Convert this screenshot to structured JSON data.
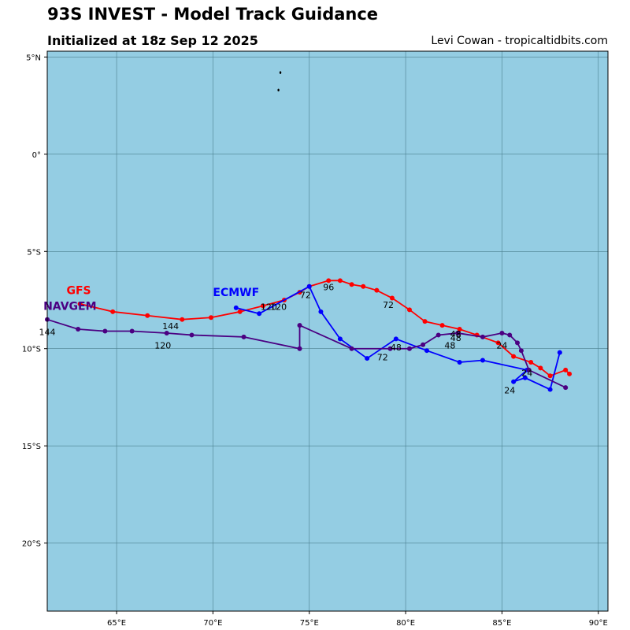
{
  "header": {
    "title": "93S INVEST - Model Track Guidance",
    "subtitle": "Initialized at 18z Sep 12 2025",
    "credit": "Levi Cowan - tropicaltidbits.com"
  },
  "colors": {
    "ocean": "#94cde3",
    "grid": "#4a7f8f",
    "gfs": "#ff0000",
    "ecmwf": "#0000ff",
    "navgem": "#4b0082"
  },
  "chart_data": {
    "type": "map",
    "xlim": [
      61.4,
      90.5
    ],
    "ylim": [
      -23.5,
      5.3
    ],
    "x_ticks": [
      {
        "value": 65,
        "label": "65°E"
      },
      {
        "value": 70,
        "label": "70°E"
      },
      {
        "value": 75,
        "label": "75°E"
      },
      {
        "value": 80,
        "label": "80°E"
      },
      {
        "value": 85,
        "label": "85°E"
      },
      {
        "value": 90,
        "label": "90°E"
      }
    ],
    "y_ticks": [
      {
        "value": 5,
        "label": "5°N"
      },
      {
        "value": 0,
        "label": "0°"
      },
      {
        "value": -5,
        "label": "5°S"
      },
      {
        "value": -10,
        "label": "10°S"
      },
      {
        "value": -15,
        "label": "15°S"
      },
      {
        "value": -20,
        "label": "20°S"
      }
    ],
    "grid": true,
    "islands": [
      {
        "lon": 73.5,
        "lat": 4.2
      },
      {
        "lon": 73.4,
        "lat": 3.3
      }
    ],
    "tracks": [
      {
        "name": "GFS",
        "color": "#ff0000",
        "label_pos": [
          62.4,
          -7.2
        ],
        "points": [
          [
            88.5,
            -11.3
          ],
          [
            88.3,
            -11.1
          ],
          [
            87.5,
            -11.4
          ],
          [
            87.0,
            -11.0
          ],
          [
            86.5,
            -10.7
          ],
          [
            85.6,
            -10.4
          ],
          [
            84.8,
            -9.7
          ],
          [
            83.7,
            -9.3
          ],
          [
            82.8,
            -9.0
          ],
          [
            81.9,
            -8.8
          ],
          [
            81.0,
            -8.6
          ],
          [
            80.2,
            -8.0
          ],
          [
            79.3,
            -7.4
          ],
          [
            78.5,
            -7.0
          ],
          [
            77.8,
            -6.8
          ],
          [
            77.2,
            -6.7
          ],
          [
            76.6,
            -6.5
          ],
          [
            76.0,
            -6.5
          ],
          [
            75.0,
            -6.8
          ],
          [
            74.5,
            -7.1
          ],
          [
            73.7,
            -7.5
          ],
          [
            72.6,
            -7.8
          ],
          [
            71.4,
            -8.1
          ],
          [
            69.9,
            -8.4
          ],
          [
            68.4,
            -8.5
          ],
          [
            66.6,
            -8.3
          ],
          [
            64.8,
            -8.1
          ],
          [
            63.1,
            -7.7
          ]
        ],
        "labels": [
          {
            "text": "24",
            "lon": 85.0,
            "lat": -10.0
          },
          {
            "text": "48",
            "lon": 82.6,
            "lat": -9.6
          },
          {
            "text": "72",
            "lon": 79.1,
            "lat": -7.9
          },
          {
            "text": "96",
            "lon": 76.0,
            "lat": -7.0
          },
          {
            "text": "120",
            "lon": 73.4,
            "lat": -8.0
          },
          {
            "text": "144",
            "lon": 67.8,
            "lat": -9.0
          }
        ]
      },
      {
        "name": "ECMWF",
        "color": "#0000ff",
        "label_pos": [
          70.0,
          -7.3
        ],
        "points": [
          [
            88.0,
            -10.2
          ],
          [
            87.5,
            -12.1
          ],
          [
            86.2,
            -11.5
          ],
          [
            85.6,
            -11.7
          ],
          [
            86.3,
            -11.1
          ],
          [
            84.0,
            -10.6
          ],
          [
            82.8,
            -10.7
          ],
          [
            81.1,
            -10.1
          ],
          [
            79.5,
            -9.5
          ],
          [
            78.0,
            -10.5
          ],
          [
            76.6,
            -9.5
          ],
          [
            75.6,
            -8.1
          ],
          [
            75.0,
            -6.8
          ],
          [
            72.4,
            -8.2
          ],
          [
            71.2,
            -7.9
          ]
        ],
        "labels": [
          {
            "text": "24",
            "lon": 85.4,
            "lat": -12.3
          },
          {
            "text": "48",
            "lon": 82.3,
            "lat": -10.0
          },
          {
            "text": "72",
            "lon": 78.8,
            "lat": -10.6
          },
          {
            "text": "72",
            "lon": 74.8,
            "lat": -7.4
          },
          {
            "text": "120",
            "lon": 72.9,
            "lat": -8.0
          }
        ]
      },
      {
        "name": "NAVGEM",
        "color": "#4b0082",
        "label_pos": [
          61.2,
          -8.0
        ],
        "points": [
          [
            88.3,
            -12.0
          ],
          [
            86.4,
            -11.1
          ],
          [
            86.0,
            -10.1
          ],
          [
            85.8,
            -9.7
          ],
          [
            85.4,
            -9.3
          ],
          [
            85.0,
            -9.2
          ],
          [
            84.0,
            -9.4
          ],
          [
            82.7,
            -9.2
          ],
          [
            81.7,
            -9.3
          ],
          [
            80.9,
            -9.8
          ],
          [
            80.2,
            -10.0
          ],
          [
            79.2,
            -10.0
          ],
          [
            77.2,
            -10.0
          ],
          [
            74.5,
            -8.8
          ],
          [
            74.5,
            -10.0
          ],
          [
            71.6,
            -9.4
          ],
          [
            68.9,
            -9.3
          ],
          [
            67.6,
            -9.2
          ],
          [
            65.8,
            -9.1
          ],
          [
            64.4,
            -9.1
          ],
          [
            63.0,
            -9.0
          ],
          [
            61.4,
            -8.5
          ]
        ],
        "labels": [
          {
            "text": "24",
            "lon": 86.3,
            "lat": -11.4
          },
          {
            "text": "48",
            "lon": 82.6,
            "lat": -9.4
          },
          {
            "text": "48",
            "lon": 79.5,
            "lat": -10.1
          },
          {
            "text": "120",
            "lon": 67.4,
            "lat": -10.0
          },
          {
            "text": "144",
            "lon": 61.4,
            "lat": -9.3
          }
        ]
      }
    ]
  }
}
